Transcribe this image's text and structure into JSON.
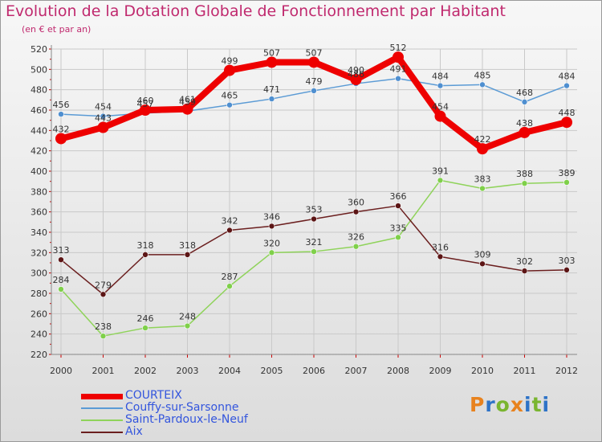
{
  "title": "Evolution de la Dotation Globale de Fonctionnement par Habitant",
  "subtitle": "(en € et par an)",
  "logo": {
    "text": "Proxiti",
    "colors": [
      "#e8821e",
      "#2e73c7",
      "#7ab530",
      "#e8821e",
      "#2e73c7",
      "#7ab530",
      "#2e73c7"
    ]
  },
  "chart_data": {
    "type": "line",
    "x": [
      "2000",
      "2001",
      "2002",
      "2003",
      "2004",
      "2005",
      "2006",
      "2007",
      "2008",
      "2009",
      "2010",
      "2011",
      "2012"
    ],
    "ylim": [
      220,
      520
    ],
    "yticks": [
      220,
      240,
      260,
      280,
      300,
      320,
      340,
      360,
      380,
      400,
      420,
      440,
      460,
      480,
      500,
      520
    ],
    "grid": true,
    "series": [
      {
        "name": "COURTEIX",
        "color": "#ee0000",
        "values": [
          432,
          443,
          460,
          461,
          499,
          507,
          507,
          490,
          512,
          454,
          422,
          438,
          448
        ]
      },
      {
        "name": "Couffy-sur-Sarsonne",
        "color": "#5b9bd5",
        "values": [
          456,
          454,
          457,
          459,
          465,
          471,
          479,
          486,
          491,
          484,
          485,
          468,
          484
        ]
      },
      {
        "name": "Saint-Pardoux-le-Neuf",
        "color": "#8fd35a",
        "values": [
          284,
          238,
          246,
          248,
          287,
          320,
          321,
          326,
          335,
          391,
          383,
          388,
          389
        ]
      },
      {
        "name": "Aix",
        "color": "#6b1f1f",
        "values": [
          313,
          279,
          318,
          318,
          342,
          346,
          353,
          360,
          366,
          316,
          309,
          302,
          303
        ]
      }
    ]
  }
}
